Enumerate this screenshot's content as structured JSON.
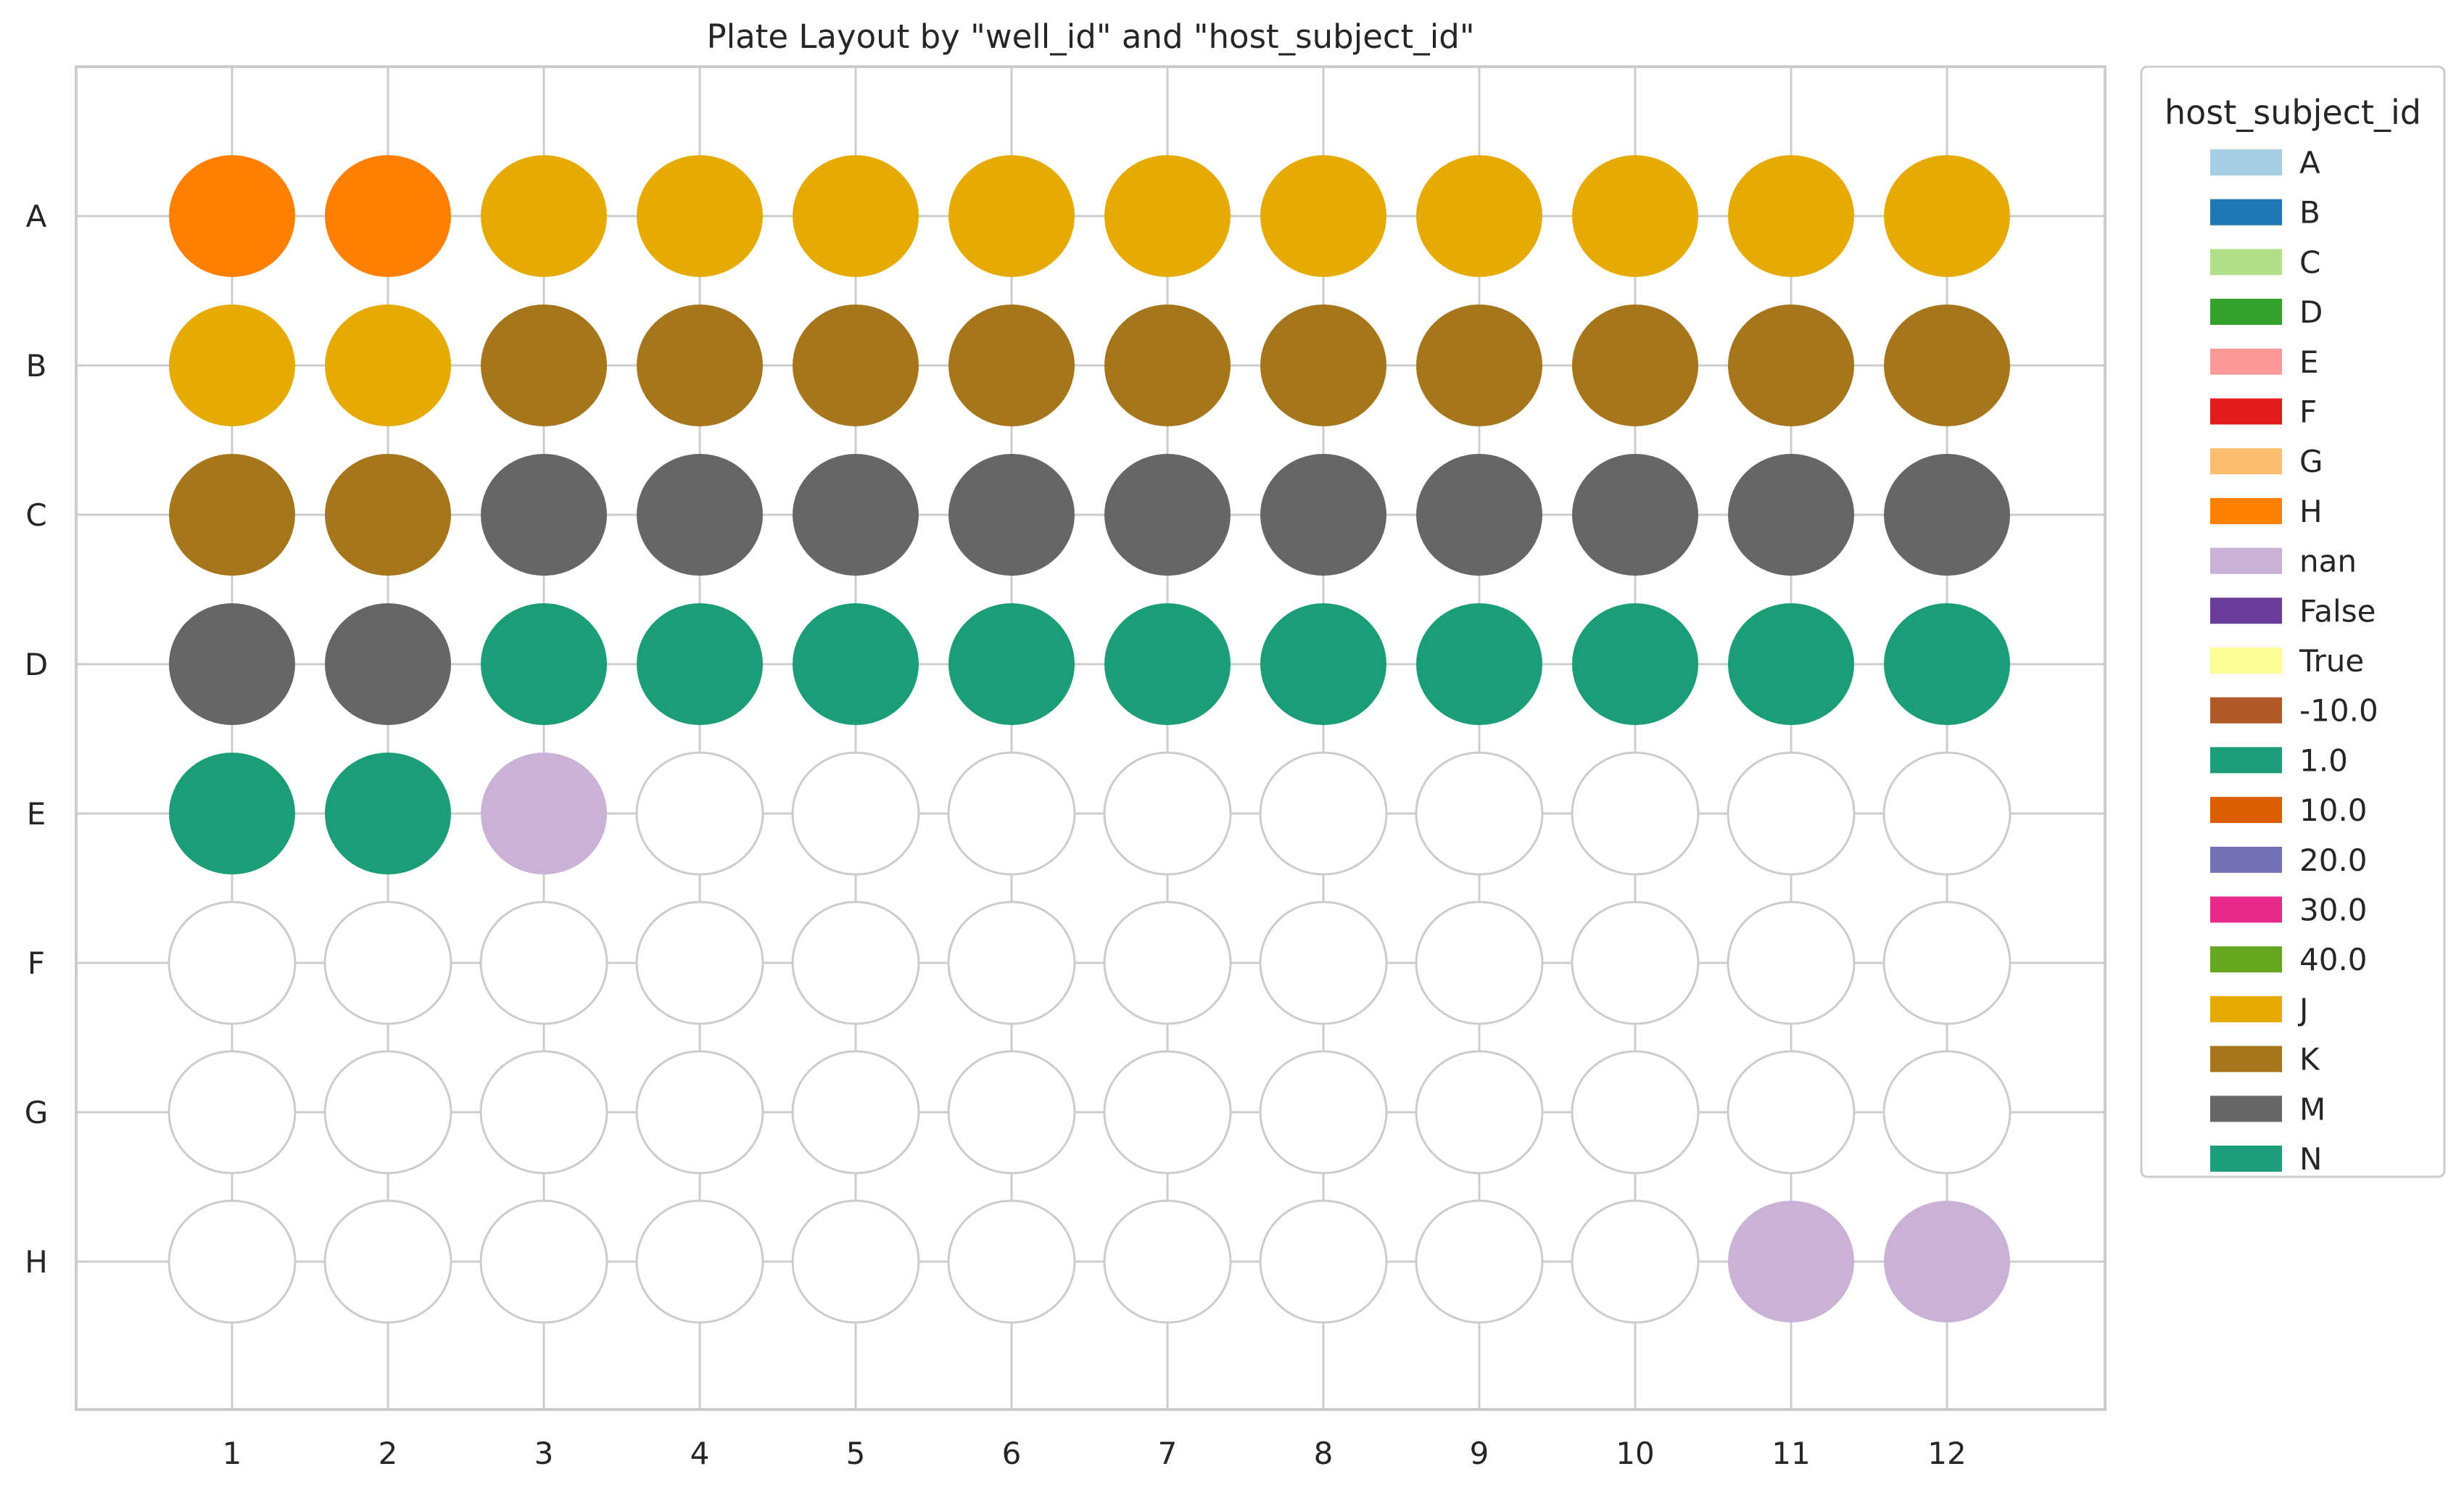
{
  "chart_data": {
    "type": "scatter",
    "title": "Plate Layout by \"well_id\" and \"host_subject_id\"",
    "xlabel": "",
    "ylabel": "",
    "columns": [
      "1",
      "2",
      "3",
      "4",
      "5",
      "6",
      "7",
      "8",
      "9",
      "10",
      "11",
      "12"
    ],
    "rows": [
      "A",
      "B",
      "C",
      "D",
      "E",
      "F",
      "G",
      "H"
    ],
    "grid": true,
    "legend": {
      "title": "host_subject_id",
      "placement": "outside-right",
      "entries": [
        {
          "label": "A",
          "color": "#a6cee3"
        },
        {
          "label": "B",
          "color": "#1f78b4"
        },
        {
          "label": "C",
          "color": "#b2df8a"
        },
        {
          "label": "D",
          "color": "#33a02c"
        },
        {
          "label": "E",
          "color": "#fb9a99"
        },
        {
          "label": "F",
          "color": "#e31a1c"
        },
        {
          "label": "G",
          "color": "#fdbf6f"
        },
        {
          "label": "H",
          "color": "#ff7f00"
        },
        {
          "label": "nan",
          "color": "#cab2d6"
        },
        {
          "label": "False",
          "color": "#6a3d9a"
        },
        {
          "label": "True",
          "color": "#ffff99"
        },
        {
          "label": "-10.0",
          "color": "#b15928"
        },
        {
          "label": "1.0",
          "color": "#1b9e77"
        },
        {
          "label": "10.0",
          "color": "#d95f02"
        },
        {
          "label": "20.0",
          "color": "#7570b3"
        },
        {
          "label": "30.0",
          "color": "#e7298a"
        },
        {
          "label": "40.0",
          "color": "#66a61e"
        },
        {
          "label": "J",
          "color": "#e6ab02"
        },
        {
          "label": "K",
          "color": "#a6761d"
        },
        {
          "label": "M",
          "color": "#666666"
        },
        {
          "label": "N",
          "color": "#1b9e77"
        }
      ]
    },
    "wells": {
      "A": [
        "H",
        "H",
        "J",
        "J",
        "J",
        "J",
        "J",
        "J",
        "J",
        "J",
        "J",
        "J"
      ],
      "B": [
        "J",
        "J",
        "K",
        "K",
        "K",
        "K",
        "K",
        "K",
        "K",
        "K",
        "K",
        "K"
      ],
      "C": [
        "K",
        "K",
        "M",
        "M",
        "M",
        "M",
        "M",
        "M",
        "M",
        "M",
        "M",
        "M"
      ],
      "D": [
        "M",
        "M",
        "N",
        "N",
        "N",
        "N",
        "N",
        "N",
        "N",
        "N",
        "N",
        "N"
      ],
      "E": [
        "N",
        "N",
        "nan",
        null,
        null,
        null,
        null,
        null,
        null,
        null,
        null,
        null
      ],
      "F": [
        null,
        null,
        null,
        null,
        null,
        null,
        null,
        null,
        null,
        null,
        null,
        null
      ],
      "G": [
        null,
        null,
        null,
        null,
        null,
        null,
        null,
        null,
        null,
        null,
        null,
        null
      ],
      "H": [
        null,
        null,
        null,
        null,
        null,
        null,
        null,
        null,
        null,
        null,
        "nan",
        "nan"
      ]
    }
  }
}
